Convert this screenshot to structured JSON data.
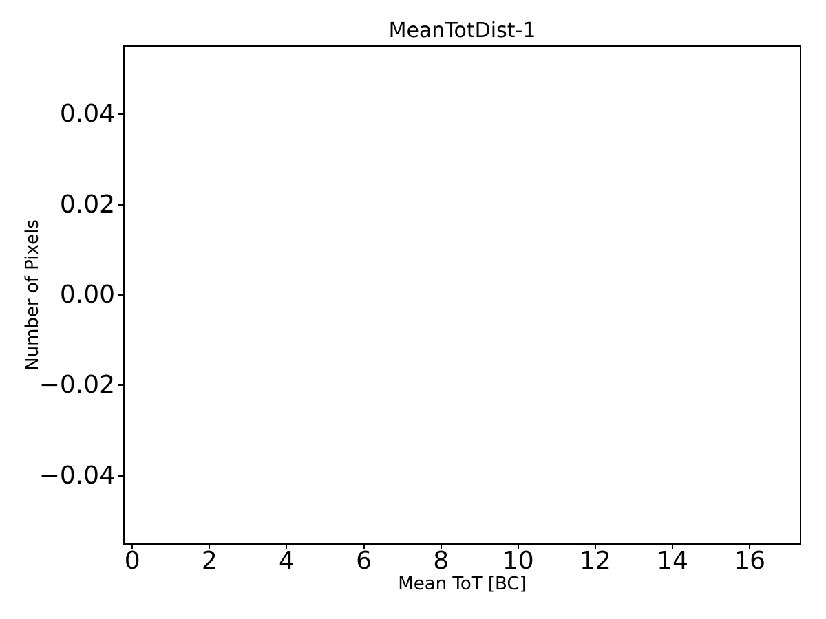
{
  "figure": {
    "background_color": "#ffffff",
    "axes_color": "#000000",
    "text_color": "#000000"
  },
  "chart_data": {
    "type": "bar",
    "title": "MeanTotDist-1",
    "xlabel": "Mean ToT [BC]",
    "ylabel": "Number of Pixels",
    "xlim": [
      -0.2,
      17.3
    ],
    "ylim": [
      -0.055,
      0.055
    ],
    "xticks": [
      0,
      2,
      4,
      6,
      8,
      10,
      12,
      14,
      16
    ],
    "xtick_labels": [
      "0",
      "2",
      "4",
      "6",
      "8",
      "10",
      "12",
      "14",
      "16"
    ],
    "yticks": [
      0.04,
      0.02,
      0,
      -0.02,
      -0.04
    ],
    "ytick_labels": [
      "0.04",
      "0.02",
      "0.00",
      "−0.02",
      "−0.04"
    ],
    "grid": false,
    "legend": null,
    "series": []
  }
}
